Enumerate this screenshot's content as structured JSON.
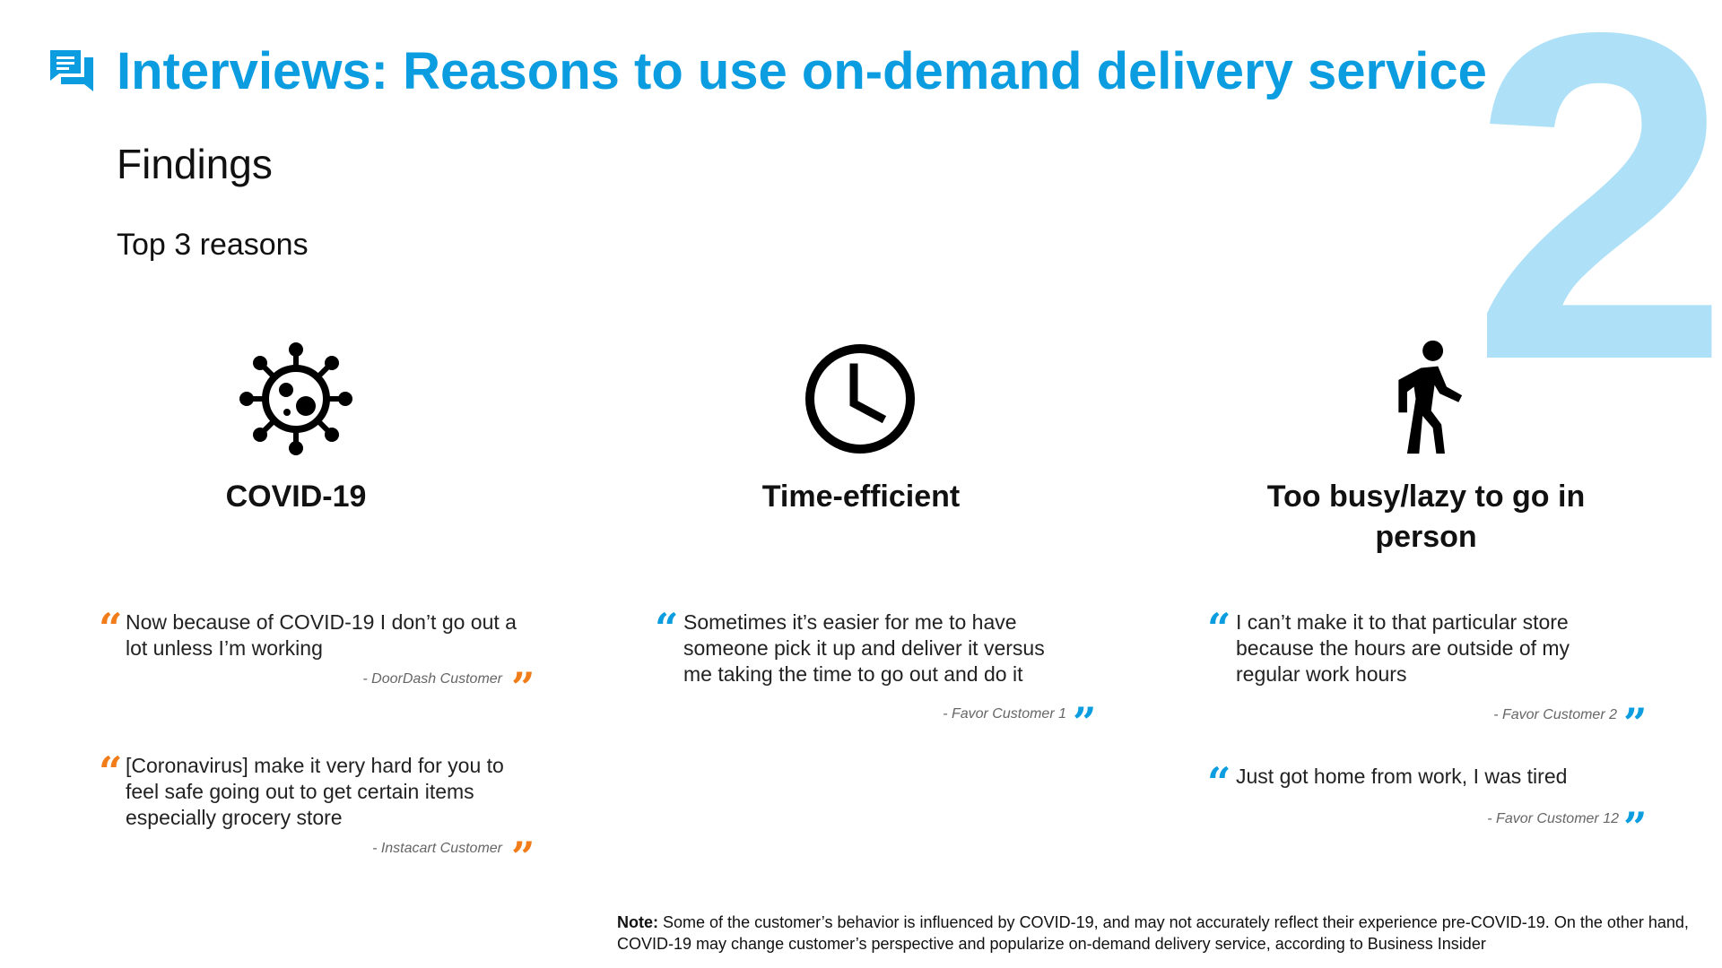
{
  "page": {
    "big_number": "2",
    "title": "Interviews: Reasons to use on-demand delivery service",
    "subtitle": "Findings",
    "section_label": "Top 3 reasons",
    "title_icon": "chat-bubbles-icon"
  },
  "colors": {
    "title": "#0b9de0",
    "big_number": "#aee0f7",
    "quote_orange": "#f07c1a",
    "quote_blue": "#0b9de0"
  },
  "reasons": [
    {
      "icon": "virus-icon",
      "name": "COVID-19",
      "quotes": [
        {
          "text": "Now because of COVID-19 I don’t go out a lot unless I’m working",
          "source": "- DoorDash Customer",
          "color": "orange"
        },
        {
          "text": "[Coronavirus] make it very hard for you to feel safe going out to get certain items especially grocery store",
          "source": "- Instacart Customer",
          "color": "orange"
        }
      ]
    },
    {
      "icon": "clock-icon",
      "name": "Time-efficient",
      "quotes": [
        {
          "text": "Sometimes it’s easier for me to have someone pick it up and deliver it versus me taking the time to go out and do it",
          "source": "- Favor Customer 1",
          "color": "blue"
        }
      ]
    },
    {
      "icon": "walking-person-icon",
      "name": "Too busy/lazy to go in person",
      "quotes": [
        {
          "text": "I can’t make it to that particular store because the hours are outside of my regular work hours",
          "source": "- Favor Customer 2",
          "color": "blue"
        },
        {
          "text": "Just got home from work, I was tired",
          "source": "- Favor Customer 12",
          "color": "blue"
        }
      ]
    }
  ],
  "note": {
    "label": "Note:",
    "text": "Some of the customer’s behavior is influenced by COVID-19, and may not accurately reflect their experience pre-COVID-19. On the other hand, COVID-19 may change customer’s perspective and popularize on-demand delivery service, according to Business Insider"
  }
}
